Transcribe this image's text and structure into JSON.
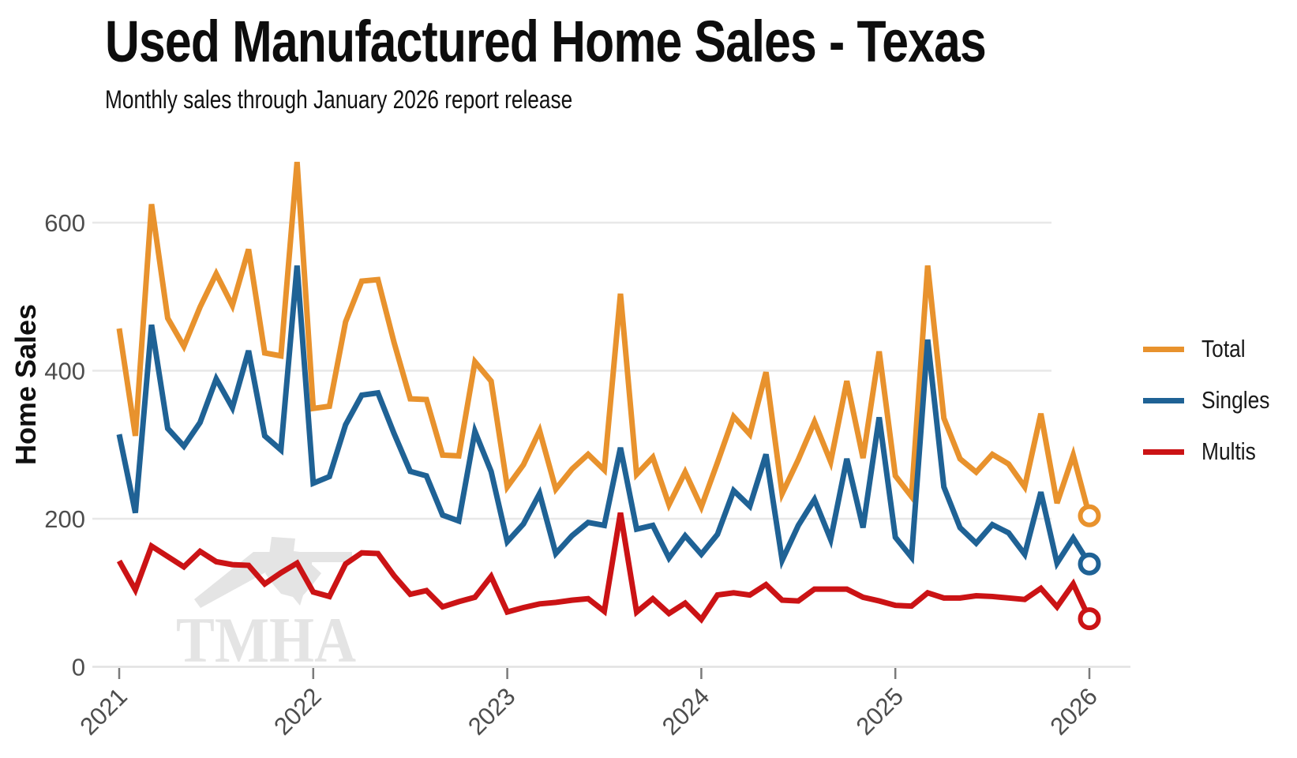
{
  "header": {
    "title": "Used Manufactured Home Sales - Texas",
    "subtitle": "Monthly sales through January 2026 report release"
  },
  "y_axis": {
    "label": "Home Sales"
  },
  "watermark": {
    "text": "TMHA"
  },
  "legend": {
    "position": "right",
    "items": [
      {
        "label": "Total",
        "color": "#E8922D"
      },
      {
        "label": "Singles",
        "color": "#1F6295"
      },
      {
        "label": "Multis",
        "color": "#CB1315"
      }
    ]
  },
  "colors": {
    "grid": "#E8E8E8",
    "axis": "#E2E2E2",
    "tick_mark": "#7a7a7a",
    "tick_text": "#4d4d4d",
    "watermark": "#E4E4E4",
    "background": "#ffffff"
  },
  "chart_data": {
    "type": "line",
    "title": "Used Manufactured Home Sales - Texas",
    "subtitle": "Monthly sales through January 2026 report release",
    "xlabel": "",
    "ylabel": "Home Sales",
    "x_unit": "month",
    "x_start": "2021-01",
    "x_end": "2026-01",
    "n_points": 61,
    "x_tick_labels": [
      "2021",
      "2022",
      "2023",
      "2024",
      "2025",
      "2026"
    ],
    "yticks": [
      0,
      200,
      400,
      600
    ],
    "ylim": [
      0,
      700
    ],
    "grid": "horizontal",
    "legend_position": "right",
    "end_marker": "open circle on final point of each series",
    "series": [
      {
        "name": "Total",
        "color": "#E8922D",
        "values": [
          457,
          312,
          625,
          471,
          433,
          486,
          531,
          488,
          564,
          424,
          420,
          682,
          349,
          352,
          466,
          521,
          523,
          438,
          362,
          361,
          286,
          285,
          412,
          386,
          243,
          273,
          319,
          240,
          267,
          287,
          266,
          504,
          260,
          283,
          219,
          263,
          216,
          276,
          338,
          314,
          398,
          234,
          280,
          331,
          277,
          386,
          282,
          426,
          258,
          230,
          542,
          336,
          281,
          263,
          287,
          274,
          243,
          342,
          221,
          286,
          204
        ]
      },
      {
        "name": "Singles",
        "color": "#1F6295",
        "values": [
          314,
          208,
          462,
          322,
          298,
          330,
          389,
          350,
          427,
          312,
          293,
          542,
          248,
          257,
          327,
          367,
          370,
          315,
          264,
          258,
          205,
          197,
          318,
          264,
          169,
          193,
          234,
          153,
          177,
          195,
          191,
          296,
          186,
          191,
          147,
          177,
          152,
          179,
          238,
          217,
          287,
          144,
          191,
          226,
          172,
          281,
          188,
          337,
          175,
          148,
          442,
          243,
          188,
          167,
          192,
          181,
          152,
          236,
          140,
          174,
          139
        ]
      },
      {
        "name": "Multis",
        "color": "#CB1315",
        "values": [
          143,
          104,
          163,
          149,
          135,
          156,
          142,
          138,
          137,
          112,
          127,
          140,
          101,
          95,
          139,
          154,
          153,
          123,
          98,
          103,
          81,
          88,
          94,
          122,
          74,
          80,
          85,
          87,
          90,
          92,
          75,
          208,
          74,
          92,
          72,
          86,
          64,
          97,
          100,
          97,
          111,
          90,
          89,
          105,
          105,
          105,
          94,
          89,
          83,
          82,
          100,
          93,
          93,
          96,
          95,
          93,
          91,
          106,
          81,
          112,
          65
        ]
      }
    ]
  }
}
